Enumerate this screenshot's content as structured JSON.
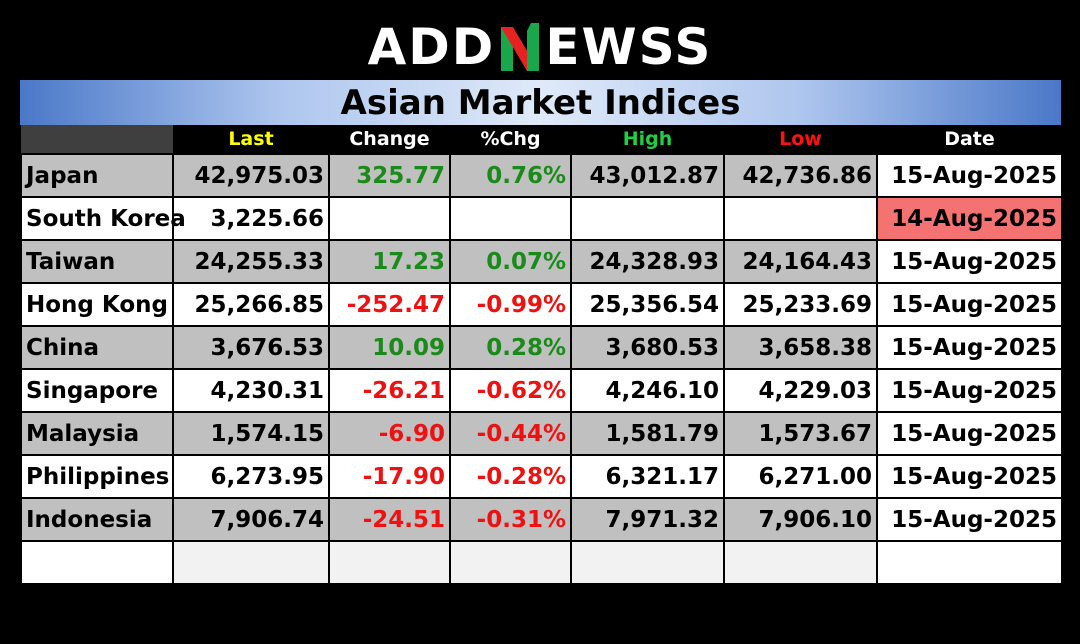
{
  "logo": {
    "pre": "ADD",
    "post": "EWSS",
    "n_colors": [
      "#1aa64a",
      "#e62222",
      "#ffffff"
    ]
  },
  "title": "Asian Market Indices",
  "headers": [
    {
      "label": "",
      "color": "#ffffff"
    },
    {
      "label": "Last",
      "color": "#ffff00"
    },
    {
      "label": "Change",
      "color": "#ffffff"
    },
    {
      "label": "%Chg",
      "color": "#ffffff"
    },
    {
      "label": "High",
      "color": "#22cc44"
    },
    {
      "label": "Low",
      "color": "#ff1111"
    },
    {
      "label": "Date",
      "color": "#ffffff"
    }
  ],
  "rows": [
    {
      "name": "Japan",
      "last": "42,975.03",
      "change": "325.77",
      "pct": "0.76%",
      "high": "43,012.87",
      "low": "42,736.86",
      "date": "15-Aug-2025",
      "dir": "pos"
    },
    {
      "name": "South Korea",
      "last": "3,225.66",
      "change": "",
      "pct": "",
      "high": "",
      "low": "",
      "date": "14-Aug-2025",
      "dir": "",
      "stale": true
    },
    {
      "name": "Taiwan",
      "last": "24,255.33",
      "change": "17.23",
      "pct": "0.07%",
      "high": "24,328.93",
      "low": "24,164.43",
      "date": "15-Aug-2025",
      "dir": "pos"
    },
    {
      "name": "Hong Kong",
      "last": "25,266.85",
      "change": "-252.47",
      "pct": "-0.99%",
      "high": "25,356.54",
      "low": "25,233.69",
      "date": "15-Aug-2025",
      "dir": "neg"
    },
    {
      "name": "China",
      "last": "3,676.53",
      "change": "10.09",
      "pct": "0.28%",
      "high": "3,680.53",
      "low": "3,658.38",
      "date": "15-Aug-2025",
      "dir": "pos"
    },
    {
      "name": "Singapore",
      "last": "4,230.31",
      "change": "-26.21",
      "pct": "-0.62%",
      "high": "4,246.10",
      "low": "4,229.03",
      "date": "15-Aug-2025",
      "dir": "neg"
    },
    {
      "name": "Malaysia",
      "last": "1,574.15",
      "change": "-6.90",
      "pct": "-0.44%",
      "high": "1,581.79",
      "low": "1,573.67",
      "date": "15-Aug-2025",
      "dir": "neg"
    },
    {
      "name": "Philippines",
      "last": "6,273.95",
      "change": "-17.90",
      "pct": "-0.28%",
      "high": "6,321.17",
      "low": "6,271.00",
      "date": "15-Aug-2025",
      "dir": "neg"
    },
    {
      "name": "Indonesia",
      "last": "7,906.74",
      "change": "-24.51",
      "pct": "-0.31%",
      "high": "7,971.32",
      "low": "7,906.10",
      "date": "15-Aug-2025",
      "dir": "neg"
    }
  ],
  "colors": {
    "positive": "#1a8a1a",
    "negative": "#ee1111",
    "stale_date_bg": "#f47272",
    "gray_row": "#c0c0c0"
  }
}
